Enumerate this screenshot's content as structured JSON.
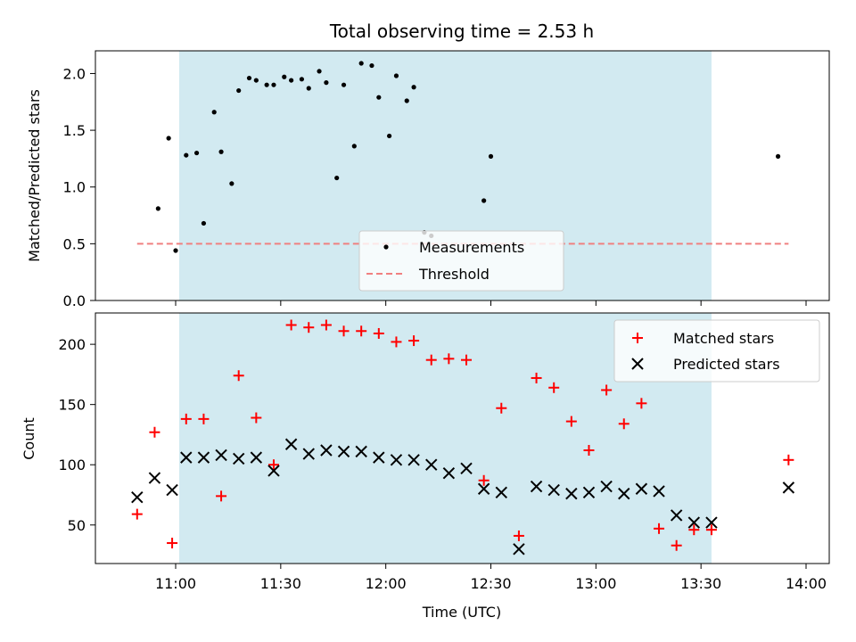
{
  "chart_data": [
    {
      "type": "scatter",
      "title": "Total observing time = 2.53 h",
      "ylabel": "Matched/Predicted stars",
      "ylim": [
        0,
        2.2
      ],
      "yticks": [
        "0.0",
        "0.5",
        "1.0",
        "1.5",
        "2.0"
      ],
      "shaded_interval": {
        "start": "11:01",
        "end": "13:33",
        "color": "#add8e6"
      },
      "series": [
        {
          "name": "Measurements",
          "marker": "dot",
          "color": "#000000",
          "x": [
            "10:55",
            "10:58",
            "11:00",
            "11:03",
            "11:06",
            "11:08",
            "11:11",
            "11:13",
            "11:16",
            "11:18",
            "11:21",
            "11:23",
            "11:26",
            "11:28",
            "11:31",
            "11:33",
            "11:36",
            "11:38",
            "11:41",
            "11:43",
            "11:46",
            "11:48",
            "11:51",
            "11:53",
            "11:56",
            "11:58",
            "12:01",
            "12:03",
            "12:06",
            "12:08",
            "12:11",
            "12:13",
            "12:28",
            "12:30",
            "13:52"
          ],
          "y": [
            0.81,
            1.43,
            0.44,
            1.28,
            1.3,
            0.68,
            1.66,
            1.31,
            1.03,
            1.85,
            1.96,
            1.94,
            1.9,
            1.9,
            1.97,
            1.94,
            1.95,
            1.87,
            2.02,
            1.92,
            1.08,
            1.9,
            1.36,
            2.09,
            2.07,
            1.79,
            1.45,
            1.98,
            1.76,
            1.88,
            0.6,
            0.57,
            0.88,
            1.27,
            1.27
          ]
        },
        {
          "name": "Threshold",
          "line": "dashed",
          "color": "#f08080",
          "x": [
            "10:49",
            "13:55"
          ],
          "y": [
            0.5,
            0.5
          ]
        }
      ],
      "legend": "lower-center"
    },
    {
      "type": "scatter",
      "xlabel": "Time (UTC)",
      "ylabel": "Count",
      "ylim": [
        18,
        226
      ],
      "yticks": [
        "50",
        "100",
        "150",
        "200"
      ],
      "xticks": [
        "11:00",
        "11:30",
        "12:00",
        "12:30",
        "13:00",
        "13:30",
        "14:00"
      ],
      "shaded_interval": {
        "start": "11:01",
        "end": "13:33",
        "color": "#add8e6"
      },
      "series": [
        {
          "name": "Matched stars",
          "marker": "plus",
          "color": "#ff0000",
          "x": [
            "10:49",
            "10:54",
            "10:59",
            "11:03",
            "11:08",
            "11:13",
            "11:18",
            "11:23",
            "11:28",
            "11:33",
            "11:38",
            "11:43",
            "11:48",
            "11:53",
            "11:58",
            "12:03",
            "12:08",
            "12:13",
            "12:18",
            "12:23",
            "12:28",
            "12:33",
            "12:38",
            "12:43",
            "12:48",
            "12:53",
            "12:58",
            "13:03",
            "13:08",
            "13:13",
            "13:18",
            "13:23",
            "13:28",
            "13:33",
            "13:55"
          ],
          "y": [
            59,
            127,
            35,
            138,
            138,
            74,
            174,
            139,
            100,
            216,
            214,
            216,
            211,
            211,
            209,
            202,
            203,
            187,
            188,
            187,
            87,
            147,
            41,
            172,
            164,
            136,
            112,
            162,
            134,
            151,
            47,
            33,
            46,
            46,
            104
          ]
        },
        {
          "name": "Predicted stars",
          "marker": "x",
          "color": "#000000",
          "x": [
            "10:49",
            "10:54",
            "10:59",
            "11:03",
            "11:08",
            "11:13",
            "11:18",
            "11:23",
            "11:28",
            "11:33",
            "11:38",
            "11:43",
            "11:48",
            "11:53",
            "11:58",
            "12:03",
            "12:08",
            "12:13",
            "12:18",
            "12:23",
            "12:28",
            "12:33",
            "12:38",
            "12:43",
            "12:48",
            "12:53",
            "12:58",
            "13:03",
            "13:08",
            "13:13",
            "13:18",
            "13:23",
            "13:28",
            "13:33",
            "13:55"
          ],
          "y": [
            73,
            89,
            79,
            106,
            106,
            108,
            105,
            106,
            95,
            117,
            109,
            112,
            111,
            111,
            106,
            104,
            104,
            100,
            93,
            97,
            80,
            77,
            30,
            82,
            79,
            76,
            77,
            82,
            76,
            80,
            78,
            58,
            52,
            52,
            81
          ]
        }
      ],
      "legend": "upper-right"
    }
  ]
}
